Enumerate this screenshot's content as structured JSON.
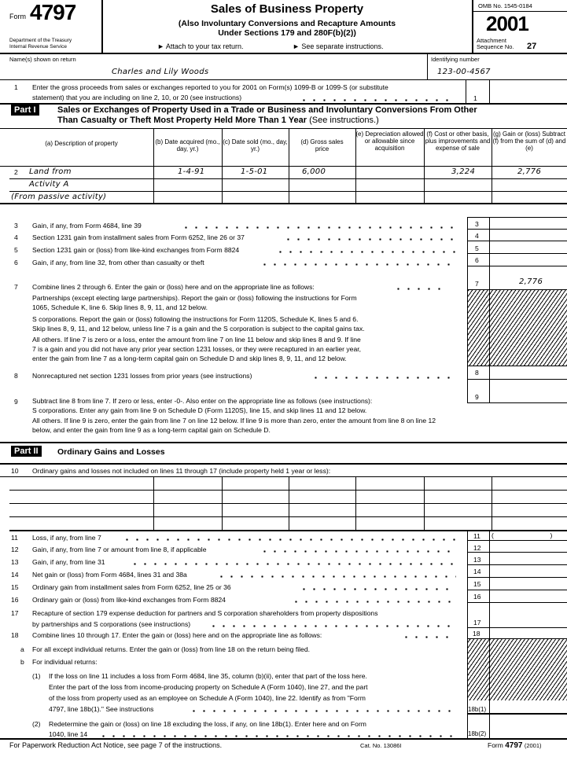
{
  "header": {
    "form_label": "Form",
    "form_number": "4797",
    "dept1": "Department of the Treasury",
    "dept2": "Internal Revenue Service",
    "title": "Sales of Business Property",
    "subtitle1": "(Also Involuntary Conversions and Recapture Amounts",
    "subtitle2": "Under Sections 179 and 280F(b)(2))",
    "attach": "► Attach to your tax return.",
    "see": "► See separate instructions.",
    "omb": "OMB No. 1545-0184",
    "year": "2001",
    "attachment": "Attachment",
    "sequence": "Sequence No.",
    "sequence_no": "27"
  },
  "taxpayer": {
    "name_label": "Name(s) shown on return",
    "name": "Charles and Lily Woods",
    "id_label": "Identifying number",
    "id": "123-00-4567"
  },
  "line1": {
    "num": "1",
    "text1": "Enter the gross proceeds from sales or exchanges reported to you for 2001 on Form(s) 1099-B or 1099-S (or substitute",
    "text2": "statement) that you are including on line 2, 10, or 20 (see instructions)",
    "box": "1"
  },
  "part1": {
    "label": "Part I",
    "title1": "Sales or Exchanges of Property Used in a Trade or Business and Involuntary Conversions From Other",
    "title2": "Than Casualty or Theft   Most Property Held More Than 1 Year",
    "title_note": "(See instructions.)",
    "columns": [
      "(a) Description of property",
      "(b) Date acquired (mo., day, yr.)",
      "(c) Date sold (mo., day, yr.)",
      "(d) Gross sales price",
      "(e) Depreciation allowed or allowable since acquisition",
      "(f) Cost or other basis, plus improvements and expense of sale",
      "(g) Gain or (loss) Subtract (f) from the sum of (d) and (e)"
    ],
    "line2_num": "2",
    "rows": [
      {
        "a": "Land from",
        "b": "1-4-91",
        "c": "1-5-01",
        "d": "6,000",
        "e": "",
        "f": "3,224",
        "g": "2,776"
      },
      {
        "a": "Activity A"
      },
      {
        "a": "(From passive activity)"
      }
    ],
    "lines": [
      {
        "num": "3",
        "text": "Gain, if any, from Form 4684, line 39",
        "box": "3"
      },
      {
        "num": "4",
        "text": "Section 1231 gain from installment sales from Form 6252, line 26 or 37",
        "box": "4"
      },
      {
        "num": "5",
        "text": "Section 1231 gain or (loss) from like-kind exchanges from Form 8824",
        "box": "5"
      },
      {
        "num": "6",
        "text": "Gain, if any, from line 32, from other than casualty or theft",
        "box": "6"
      }
    ],
    "line7": {
      "num": "7",
      "text": "Combine lines 2 through 6. Enter the gain or (loss) here and on the appropriate line as follows:",
      "box": "7",
      "amount": "2,776",
      "p1": "Partnerships (except electing large partnerships). Report the gain or (loss) following the instructions for Form",
      "p2": "1065, Schedule K, line 6. Skip lines 8, 9, 11, and 12 below.",
      "s1": "S corporations. Report the gain or (loss) following the instructions for Form 1120S, Schedule K, lines 5 and 6.",
      "s2": "Skip lines 8, 9, 11, and 12 below, unless line 7 is a gain and the S corporation is subject to the capital gains tax.",
      "o1": "All others. If line 7 is zero or a loss, enter the amount from line 7 on line 11 below and skip lines 8 and 9. If line",
      "o2": "7 is a gain and you did not have any prior year section 1231 losses, or they were recaptured in an earlier year,",
      "o3": "enter the gain from line 7 as a long-term capital gain on Schedule D and skip lines 8, 9, 11, and 12 below."
    },
    "line8": {
      "num": "8",
      "text": "Nonrecaptured net section 1231 losses from prior years (see instructions)",
      "box": "8"
    },
    "line9": {
      "num": "9",
      "text": "Subtract line 8 from line 7. If zero or less, enter -0-. Also enter on the appropriate line as follows (see instructions):",
      "box": "9",
      "s": "S corporations. Enter any gain from line 9 on Schedule D (Form 1120S), line 15, and skip lines 11 and 12 below.",
      "o1": "All others. If line 9 is zero, enter the gain from line 7 on line 12 below. If line 9 is more than zero, enter the amount from line 8 on line 12",
      "o2": "below, and enter the gain from line 9 as a long-term capital gain on Schedule D."
    }
  },
  "part2": {
    "label": "Part II",
    "title": "Ordinary Gains and Losses",
    "line10": {
      "num": "10",
      "text": "Ordinary gains and losses not included on lines 11 through 17 (include property held 1 year or less):"
    },
    "lines": [
      {
        "num": "11",
        "text": "Loss, if any, from line 7",
        "box": "11",
        "amount": "(                              )"
      },
      {
        "num": "12",
        "text": "Gain, if any, from line 7 or amount from line 8, if applicable",
        "box": "12"
      },
      {
        "num": "13",
        "text": "Gain, if any, from line 31",
        "box": "13"
      },
      {
        "num": "14",
        "text": "Net gain or (loss) from Form 4684, lines 31 and 38a",
        "box": "14"
      },
      {
        "num": "15",
        "text": "Ordinary gain from installment sales from Form 6252, line 25 or 36",
        "box": "15"
      },
      {
        "num": "16",
        "text": "Ordinary gain or (loss) from like-kind exchanges from Form 8824",
        "box": "16"
      }
    ],
    "line17": {
      "num": "17",
      "text1": "Recapture of section 179 expense deduction for partners and S corporation shareholders from property dispositions",
      "text2": "by partnerships and S corporations (see instructions)",
      "box": "17"
    },
    "line18": {
      "num": "18",
      "text": "Combine lines 10 through 17. Enter the gain or (loss) here and on the appropriate line as follows:",
      "box": "18",
      "a_label": "a",
      "a": "For all except individual returns. Enter the gain or (loss) from line 18 on the return being filed.",
      "b_label": "b",
      "b": "For individual returns:",
      "b1_label": "(1)",
      "b1_1": "If the loss on line 11 includes a loss from Form 4684, line 35, column (b)(ii), enter that part of the loss here.",
      "b1_2": "Enter the part of the loss from income-producing property on Schedule A (Form 1040), line 27, and the part",
      "b1_3": "of the loss from property used as an employee on Schedule A (Form 1040), line 22. Identify as from \"Form",
      "b1_4": "4797, line 18b(1).\" See instructions",
      "b1_box": "18b(1)",
      "b2_label": "(2)",
      "b2_1": "Redetermine the gain or (loss) on line 18 excluding the loss, if any, on line 18b(1). Enter here and on Form",
      "b2_2": "1040, line 14",
      "b2_box": "18b(2)"
    }
  },
  "footer": {
    "notice": "For Paperwork Reduction Act Notice, see page 7 of the instructions.",
    "cat": "Cat. No. 13086I",
    "form_label": "Form",
    "form_number": "4797",
    "year": "(2001)"
  }
}
